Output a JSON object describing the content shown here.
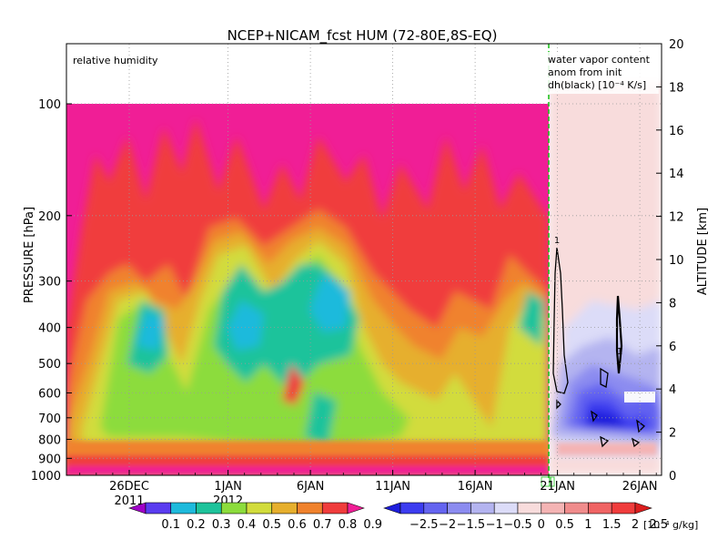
{
  "chart_data": {
    "type": "heatmap",
    "title": "NCEP+NICAM_fcst HUM (72-80E,8S-EQ)",
    "panel_left_label": "relative humidity",
    "panel_right_label_lines": [
      "water vapor content",
      "anom from init",
      "dh(black) [10⁻⁴ K/s]"
    ],
    "ylabel_left": "PRESSURE [hPa]",
    "ylabel_right": "ALTITUDE [km]",
    "y_left_ticks": [
      "100",
      "200",
      "300",
      "400",
      "500",
      "600",
      "700",
      "800",
      "900",
      "1000"
    ],
    "y_right_ticks": [
      "0",
      "2",
      "4",
      "6",
      "8",
      "10",
      "12",
      "14",
      "16",
      "18",
      "20"
    ],
    "x_ticks": [
      "26DEC",
      "1JAN",
      "6JAN",
      "11JAN",
      "16JAN",
      "21JAN",
      "26JAN"
    ],
    "x_year_labels": [
      "2011",
      "2012"
    ],
    "contour_labels": [
      "1",
      "1"
    ],
    "colorbar_left": {
      "labels": [
        "0.1",
        "0.2",
        "0.3",
        "0.4",
        "0.5",
        "0.6",
        "0.7",
        "0.8",
        "0.9"
      ],
      "colors": [
        "#a000c8",
        "#5a3cf0",
        "#1ebadc",
        "#1ec39b",
        "#8cdc3c",
        "#d2dc3c",
        "#e6af2d",
        "#f0822d",
        "#f03c3c",
        "#f01e96"
      ]
    },
    "colorbar_right": {
      "labels": [
        "−2.5",
        "−2",
        "−1.5",
        "−1",
        "−0.5",
        "0",
        "0.5",
        "1",
        "1.5",
        "2",
        "2.5"
      ],
      "unit": "[10⁻⁴ g/kg]",
      "colors": [
        "#1e1edc",
        "#3c3cf0",
        "#6464f0",
        "#8c8cf0",
        "#b4b4f0",
        "#dcdcf8",
        "#f8dcdc",
        "#f4b4b4",
        "#f08c8c",
        "#f06464",
        "#f03c3c",
        "#dc1e1e"
      ]
    }
  }
}
